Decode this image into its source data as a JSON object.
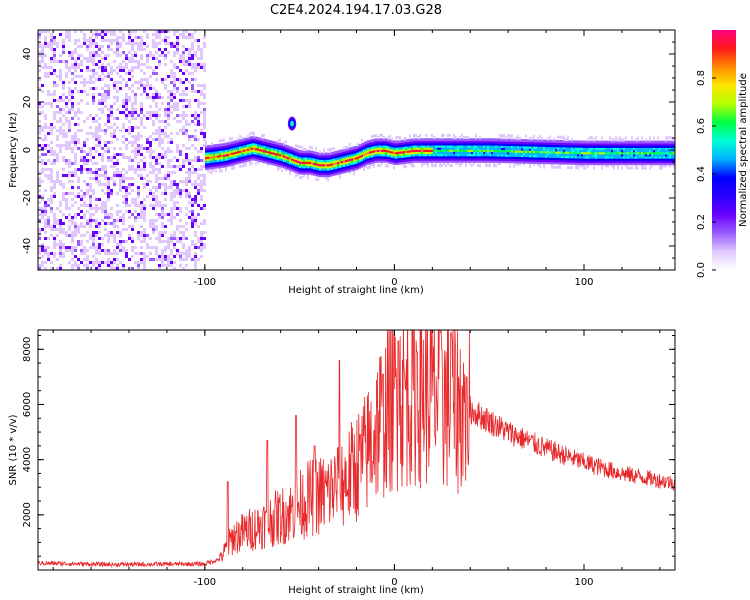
{
  "title": "C2E4.2024.194.17.03.G28",
  "chart_data": [
    {
      "type": "heatmap",
      "xlabel": "Height of straight line (km)",
      "ylabel": "Frequency (Hz)",
      "xlim": [
        -188,
        148
      ],
      "ylim": [
        -50,
        50
      ],
      "x_ticks": [
        -100,
        0,
        100
      ],
      "y_ticks": [
        -40,
        -20,
        0,
        20,
        40
      ],
      "noise_region_x": [
        -188,
        -100
      ],
      "ridge": {
        "x": [
          -100,
          -90,
          -80,
          -75,
          -70,
          -60,
          -50,
          -45,
          -40,
          -35,
          -30,
          -25,
          -20,
          -15,
          -10,
          -5,
          0,
          10,
          20,
          50,
          100,
          148
        ],
        "y": [
          -3,
          -2,
          0,
          1,
          0,
          -2,
          -5,
          -5,
          -6,
          -6,
          -5,
          -4,
          -3,
          -1,
          0,
          0,
          -1,
          0,
          0,
          0,
          -1,
          -1
        ]
      },
      "side_blob": {
        "x": -54,
        "y": 11
      },
      "colorbar": {
        "label": "Normalized spectral amplitude",
        "ticks": [
          0.0,
          0.2,
          0.4,
          0.6,
          0.8
        ],
        "range": [
          0,
          1
        ]
      },
      "colormap": [
        "#ffffff",
        "#e0c8ff",
        "#9a5cff",
        "#6a00ff",
        "#2a00ff",
        "#0000ff",
        "#00b4ff",
        "#00ffd8",
        "#00ff44",
        "#b4ff00",
        "#ffe600",
        "#ff8a00",
        "#ff1a1a",
        "#ff0080"
      ]
    },
    {
      "type": "line",
      "xlabel": "Height of straight line (km)",
      "ylabel": "SNR (10 * v/v)",
      "xlim": [
        -188,
        148
      ],
      "ylim": [
        0,
        8700
      ],
      "x_ticks": [
        -100,
        0,
        100
      ],
      "y_ticks": [
        2000,
        4000,
        6000,
        8000
      ],
      "color": "#e8282a",
      "envelope": {
        "x": [
          -188,
          -150,
          -100,
          -92,
          -85,
          -75,
          -65,
          -55,
          -45,
          -35,
          -25,
          -15,
          -8,
          0,
          10,
          20,
          30,
          40,
          50,
          60,
          80,
          100,
          120,
          148
        ],
        "y": [
          250,
          200,
          220,
          400,
          1200,
          1500,
          1800,
          2100,
          2600,
          2800,
          3300,
          4200,
          5400,
          6200,
          6600,
          6400,
          6000,
          5800,
          5400,
          5000,
          4400,
          3900,
          3500,
          3150
        ]
      },
      "peaks": {
        "x": [
          -88,
          -67,
          -52,
          -42,
          -29,
          -18,
          -6,
          2,
          12,
          25,
          30,
          38
        ],
        "y": [
          3200,
          4700,
          5600,
          4500,
          7600,
          4900,
          7100,
          8300,
          7900,
          8000,
          8600,
          7000
        ]
      }
    }
  ]
}
